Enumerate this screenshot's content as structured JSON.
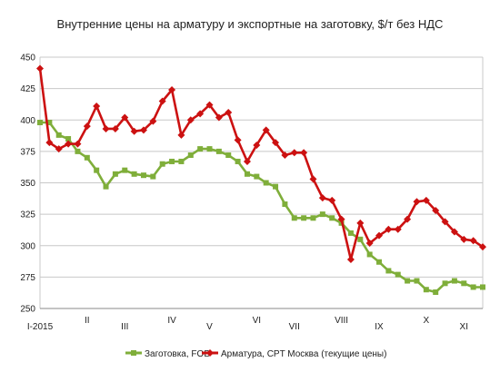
{
  "chart_data": {
    "type": "line",
    "title": "Внутренние цены на арматуру и экспортные на заготовку, $/т без НДС",
    "xlabel": "",
    "ylabel": "",
    "ylim": [
      250,
      450
    ],
    "yticks": [
      250,
      275,
      300,
      325,
      350,
      375,
      400,
      425,
      450
    ],
    "grid": true,
    "legend_position": "bottom",
    "x_month_labels": [
      {
        "label": "I-2015",
        "index": 0
      },
      {
        "label": "II",
        "index": 5
      },
      {
        "label": "III",
        "index": 9
      },
      {
        "label": "IV",
        "index": 14
      },
      {
        "label": "V",
        "index": 18
      },
      {
        "label": "VI",
        "index": 23
      },
      {
        "label": "VII",
        "index": 27
      },
      {
        "label": "VIII",
        "index": 32
      },
      {
        "label": "IX",
        "index": 36
      },
      {
        "label": "X",
        "index": 41
      },
      {
        "label": "XI",
        "index": 45
      }
    ],
    "series": [
      {
        "name": "Заготовка, FOB",
        "color": "#7fae3a",
        "marker": "square",
        "values": [
          398,
          398,
          388,
          385,
          375,
          370,
          360,
          347,
          357,
          360,
          357,
          356,
          355,
          365,
          367,
          367,
          372,
          377,
          377,
          375,
          372,
          367,
          357,
          355,
          350,
          347,
          333,
          322,
          322,
          322,
          325,
          322,
          318,
          310,
          305,
          293,
          287,
          280,
          277,
          272,
          272,
          265,
          263,
          270,
          272,
          270,
          267,
          267
        ]
      },
      {
        "name": "Арматура, CPT Москва (текущие цены)",
        "color": "#cc1111",
        "marker": "diamond",
        "values": [
          441,
          382,
          377,
          381,
          381,
          395,
          411,
          393,
          393,
          402,
          391,
          392,
          399,
          415,
          424,
          388,
          400,
          405,
          412,
          402,
          406,
          384,
          367,
          380,
          392,
          382,
          372,
          374,
          374,
          353,
          338,
          336,
          321,
          289,
          318,
          302,
          308,
          313,
          313,
          321,
          335,
          336,
          328,
          319,
          311,
          305,
          304,
          299
        ]
      }
    ]
  }
}
